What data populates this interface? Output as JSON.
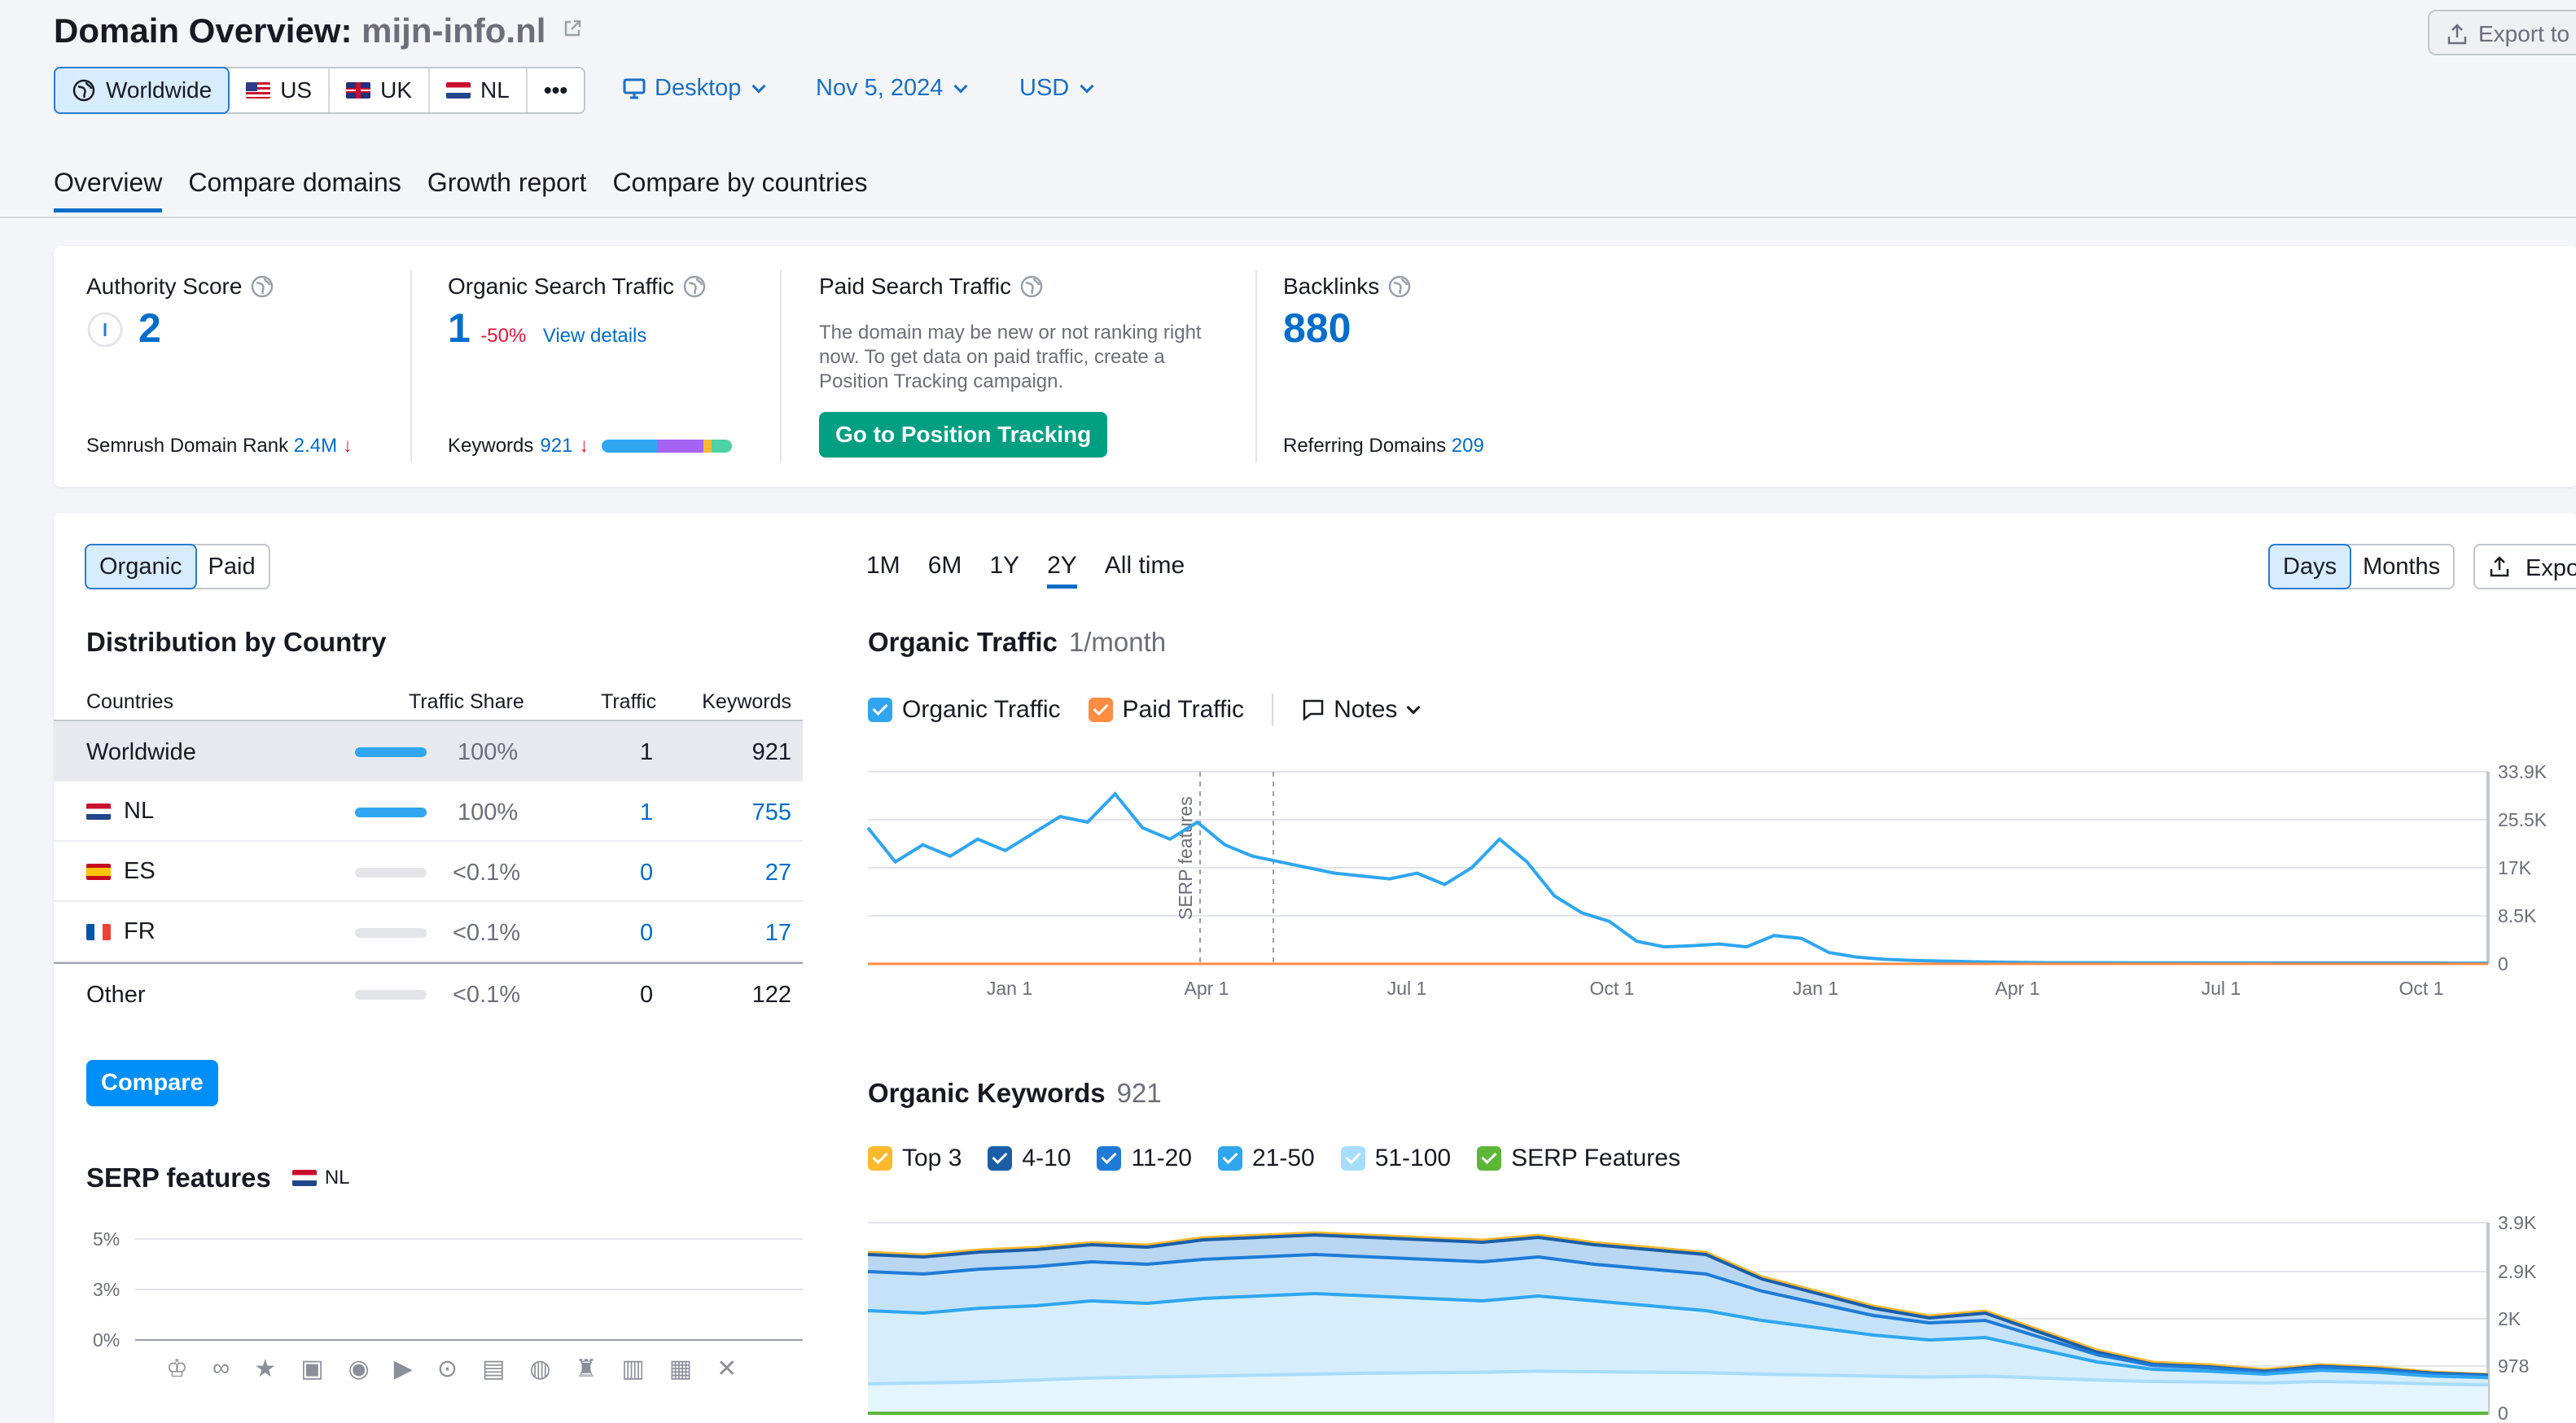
{
  "header": {
    "title_prefix": "Domain Overview:",
    "domain": "mijn-info.nl",
    "export_label": "Export to"
  },
  "regions": [
    {
      "label": "Worldwide",
      "icon": "globe-icon",
      "active": true
    },
    {
      "label": "US",
      "icon": "flag-us-icon"
    },
    {
      "label": "UK",
      "icon": "flag-uk-icon"
    },
    {
      "label": "NL",
      "icon": "flag-nl-icon"
    }
  ],
  "more_label": "•••",
  "filters": {
    "device": "Desktop",
    "date": "Nov 5, 2024",
    "currency": "USD"
  },
  "tabs": [
    "Overview",
    "Compare domains",
    "Growth report",
    "Compare by countries"
  ],
  "summary": {
    "authority": {
      "label": "Authority Score",
      "value": "2",
      "rank_label": "Semrush Domain Rank",
      "rank_value": "2.4M"
    },
    "organic": {
      "label": "Organic Search Traffic",
      "value": "1",
      "change": "-50%",
      "details": "View details",
      "keywords_label": "Keywords",
      "keywords_value": "921"
    },
    "paid": {
      "label": "Paid Search Traffic",
      "note": "The domain may be new or not ranking right now. To get data on paid traffic, create a Position Tracking campaign.",
      "button": "Go to Position Tracking"
    },
    "backlinks": {
      "label": "Backlinks",
      "value": "880",
      "ref_label": "Referring Domains",
      "ref_value": "209"
    }
  },
  "distribution": {
    "toggle": [
      "Organic",
      "Paid"
    ],
    "title": "Distribution by Country",
    "headers": [
      "Countries",
      "Traffic Share",
      "Traffic",
      "Keywords"
    ],
    "rows": [
      {
        "country": "Worldwide",
        "flag": "",
        "share": "100%",
        "share_pct": 100,
        "traffic": "1",
        "keywords": "921"
      },
      {
        "country": "NL",
        "flag": "nl",
        "share": "100%",
        "share_pct": 100,
        "traffic": "1",
        "keywords": "755"
      },
      {
        "country": "ES",
        "flag": "es",
        "share": "<0.1%",
        "share_pct": 0,
        "traffic": "0",
        "keywords": "27"
      },
      {
        "country": "FR",
        "flag": "fr",
        "share": "<0.1%",
        "share_pct": 0,
        "traffic": "0",
        "keywords": "17"
      },
      {
        "country": "Other",
        "flag": "",
        "share": "<0.1%",
        "share_pct": 0,
        "traffic": "0",
        "keywords": "122"
      }
    ],
    "compare_button": "Compare"
  },
  "serp": {
    "title": "SERP features",
    "country": "NL",
    "y_ticks": [
      "5%",
      "3%",
      "0%"
    ],
    "icons": [
      "crown-icon",
      "link-icon",
      "star-icon",
      "image-icon",
      "video-icon",
      "video-box-icon",
      "play-icon",
      "comment-icon",
      "pin-icon",
      "academic-icon",
      "document-icon",
      "briefcase-icon",
      "x-icon"
    ]
  },
  "periods": [
    "1M",
    "6M",
    "1Y",
    "2Y",
    "All time"
  ],
  "active_period": "2Y",
  "granularity": [
    "Days",
    "Months"
  ],
  "export_label": "Expo",
  "traffic_chart": {
    "title": "Organic Traffic",
    "subtitle": "1/month",
    "legend": [
      "Organic Traffic",
      "Paid Traffic"
    ],
    "notes_label": "Notes",
    "annotation": "SERP features"
  },
  "keywords_chart": {
    "title": "Organic Keywords",
    "subtitle": "921",
    "legend": [
      {
        "label": "Top 3",
        "color": "#ffb92e"
      },
      {
        "label": "4-10",
        "color": "#1a5ea8"
      },
      {
        "label": "11-20",
        "color": "#1f7bd6"
      },
      {
        "label": "21-50",
        "color": "#2fa6ef"
      },
      {
        "label": "51-100",
        "color": "#a8dcfb"
      },
      {
        "label": "SERP Features",
        "color": "#5cb738"
      }
    ]
  },
  "chart_data": [
    {
      "type": "line",
      "title": "Organic Traffic",
      "x_ticks": [
        "Jan 1",
        "Apr 1",
        "Jul 1",
        "Oct 1",
        "Jan 1",
        "Apr 1",
        "Jul 1",
        "Oct 1"
      ],
      "y_ticks": [
        "33.9K",
        "25.5K",
        "17K",
        "8.5K",
        "0"
      ],
      "ylim": [
        0,
        33900
      ],
      "series": [
        {
          "name": "Organic Traffic",
          "color": "#2fa6ef",
          "values": [
            24000,
            18000,
            21000,
            19000,
            22000,
            20000,
            23000,
            26000,
            25000,
            30000,
            24000,
            22000,
            25000,
            21000,
            19000,
            18000,
            17000,
            16000,
            15500,
            15000,
            16000,
            14000,
            17000,
            22000,
            18000,
            12000,
            9000,
            7500,
            4000,
            3000,
            3200,
            3500,
            3000,
            5000,
            4500,
            2000,
            1200,
            800,
            600,
            500,
            400,
            300,
            250,
            200,
            200,
            200,
            180,
            180,
            170,
            160,
            160,
            150,
            150,
            150,
            150,
            140,
            140,
            140,
            130,
            130
          ]
        },
        {
          "name": "Paid Traffic",
          "color": "#ff8c43",
          "values": [
            0,
            0,
            0,
            0,
            0,
            0,
            0,
            0,
            0,
            0,
            0,
            0,
            0,
            0,
            0,
            0,
            0,
            0,
            0,
            0,
            0,
            0,
            0,
            0,
            0,
            0,
            0,
            0,
            0,
            0,
            0,
            0,
            0,
            0,
            0,
            0,
            0,
            0,
            0,
            0,
            0,
            0,
            0,
            0,
            0,
            0,
            0,
            0,
            0,
            0,
            0,
            0,
            0,
            0,
            0,
            0,
            0,
            0,
            0,
            0
          ]
        }
      ]
    },
    {
      "type": "area",
      "title": "Organic Keywords",
      "y_ticks": [
        "3.9K",
        "2.9K",
        "2K",
        "978",
        "0"
      ],
      "ylim": [
        0,
        3900
      ],
      "series": [
        {
          "name": "Top 3",
          "values": [
            3300,
            3250,
            3350,
            3400,
            3500,
            3450,
            3600,
            3650,
            3700,
            3650,
            3600,
            3550,
            3650,
            3500,
            3400,
            3300,
            2800,
            2500,
            2200,
            2000,
            2100,
            1700,
            1300,
            1050,
            1000,
            900,
            1000,
            950,
            850,
            800
          ]
        },
        {
          "name": "4-10",
          "values": [
            3250,
            3200,
            3300,
            3350,
            3450,
            3400,
            3550,
            3600,
            3650,
            3600,
            3550,
            3500,
            3600,
            3450,
            3350,
            3250,
            2750,
            2450,
            2150,
            1950,
            2050,
            1650,
            1250,
            1000,
            950,
            860,
            960,
            910,
            820,
            780
          ]
        },
        {
          "name": "11-20",
          "values": [
            2900,
            2850,
            2950,
            3000,
            3100,
            3050,
            3150,
            3200,
            3250,
            3200,
            3150,
            3100,
            3200,
            3050,
            2950,
            2850,
            2500,
            2250,
            2000,
            1850,
            1900,
            1550,
            1200,
            980,
            930,
            840,
            940,
            890,
            800,
            760
          ]
        },
        {
          "name": "21-50",
          "values": [
            2100,
            2050,
            2150,
            2200,
            2300,
            2250,
            2350,
            2400,
            2450,
            2400,
            2350,
            2300,
            2400,
            2300,
            2200,
            2100,
            1900,
            1750,
            1600,
            1500,
            1550,
            1300,
            1050,
            900,
            860,
            800,
            880,
            840,
            760,
            730
          ]
        },
        {
          "name": "51-100",
          "values": [
            600,
            620,
            640,
            680,
            720,
            740,
            760,
            780,
            800,
            820,
            830,
            840,
            860,
            850,
            840,
            830,
            800,
            780,
            760,
            740,
            760,
            720,
            680,
            650,
            640,
            620,
            650,
            630,
            600,
            580
          ]
        }
      ]
    }
  ]
}
